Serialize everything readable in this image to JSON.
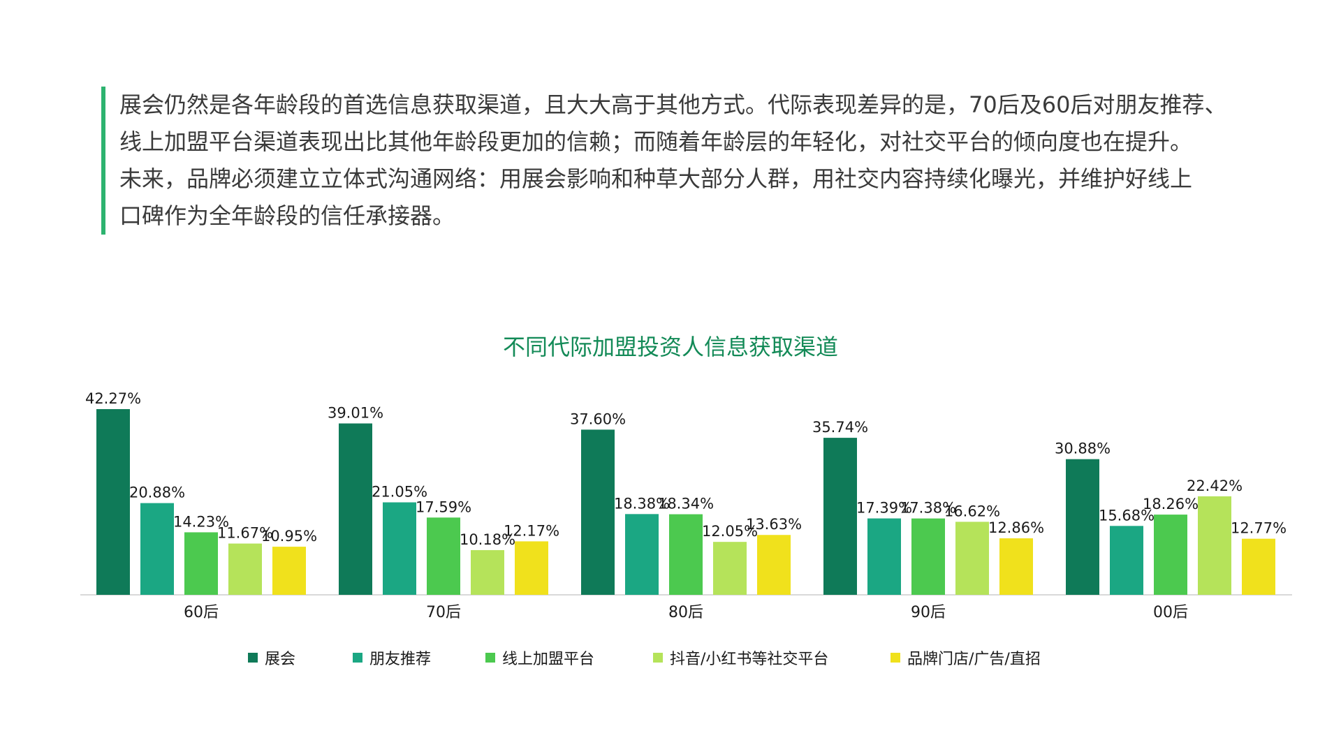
{
  "intro": {
    "lines": [
      "展会仍然是各年龄段的首选信息获取渠道，且大大高于其他方式。代际表现差异的是，70后及60后对朋友推荐、",
      "线上加盟平台渠道表现出比其他年龄段更加的信赖；而随着年龄层的年轻化，对社交平台的倾向度也在提升。",
      "未来，品牌必须建立立体式沟通网络：用展会影响和种草大部分人群，用社交内容持续化曝光，并维护好线上",
      "口碑作为全年龄段的信任承接器。"
    ]
  },
  "chart_data": {
    "type": "bar",
    "title": "不同代际加盟投资人信息获取渠道",
    "categories": [
      "60后",
      "70后",
      "80后",
      "90后",
      "00后"
    ],
    "series": [
      {
        "name": "展会",
        "color": "#0f7a58",
        "values": [
          42.27,
          39.01,
          37.6,
          35.74,
          30.88
        ],
        "labels": [
          "42.27%",
          "39.01%",
          "37.60%",
          "35.74%",
          "30.88%"
        ]
      },
      {
        "name": "朋友推荐",
        "color": "#1ba783",
        "values": [
          20.88,
          21.05,
          18.38,
          17.39,
          15.68
        ],
        "labels": [
          "20.88%",
          "21.05%",
          "18.38%",
          "17.39%",
          "15.68%"
        ]
      },
      {
        "name": "线上加盟平台",
        "color": "#4cc94f",
        "values": [
          14.23,
          17.59,
          18.34,
          17.38,
          18.26
        ],
        "labels": [
          "14.23%",
          "17.59%",
          "18.34%",
          "17.38%",
          "18.26%"
        ]
      },
      {
        "name": "抖音/小红书等社交平台",
        "color": "#b5e35a",
        "values": [
          11.67,
          10.18,
          12.05,
          16.62,
          22.42
        ],
        "labels": [
          "11.67%",
          "10.18%",
          "12.05%",
          "16.62%",
          "22.42%"
        ]
      },
      {
        "name": "品牌门店/广告/直招",
        "color": "#f0e11c",
        "values": [
          10.95,
          12.17,
          13.63,
          12.86,
          12.77
        ],
        "labels": [
          "10.95%",
          "12.17%",
          "13.63%",
          "12.86%",
          "12.77%"
        ]
      }
    ],
    "ylim": [
      0,
      45
    ],
    "grid": false,
    "legend_position": "bottom"
  }
}
